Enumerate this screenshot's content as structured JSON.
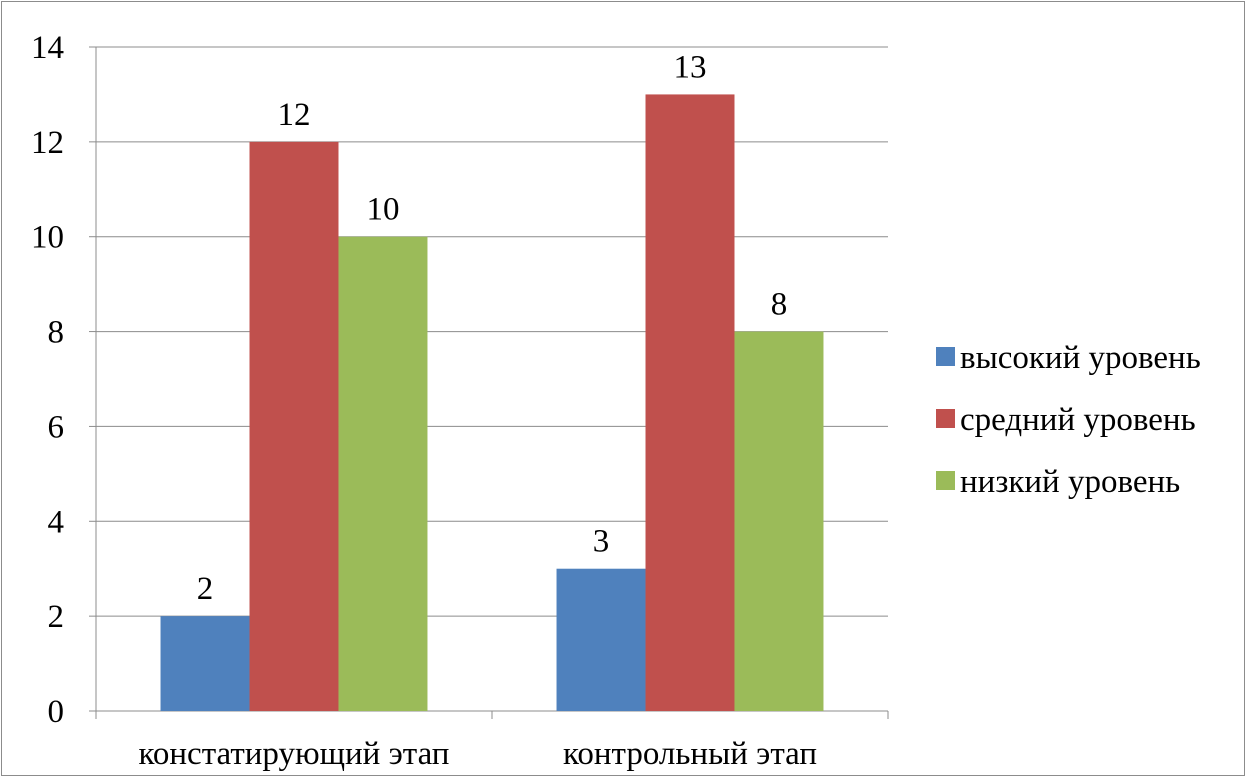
{
  "chart_data": {
    "type": "bar",
    "title": "",
    "xlabel": "",
    "ylabel": "",
    "categories": [
      "констатирующий этап",
      "контрольный этап"
    ],
    "series": [
      {
        "name": "высокий уровень",
        "values": [
          2,
          3
        ],
        "color": "#4F81BD"
      },
      {
        "name": "средний уровень",
        "values": [
          12,
          13
        ],
        "color": "#C0504D"
      },
      {
        "name": "низкий уровень",
        "values": [
          10,
          8
        ],
        "color": "#9BBB59"
      }
    ],
    "ylim": [
      0,
      14
    ],
    "yticks": [
      0,
      2,
      4,
      6,
      8,
      10,
      12,
      14
    ],
    "grid": true,
    "data_labels": true,
    "legend": "right"
  }
}
